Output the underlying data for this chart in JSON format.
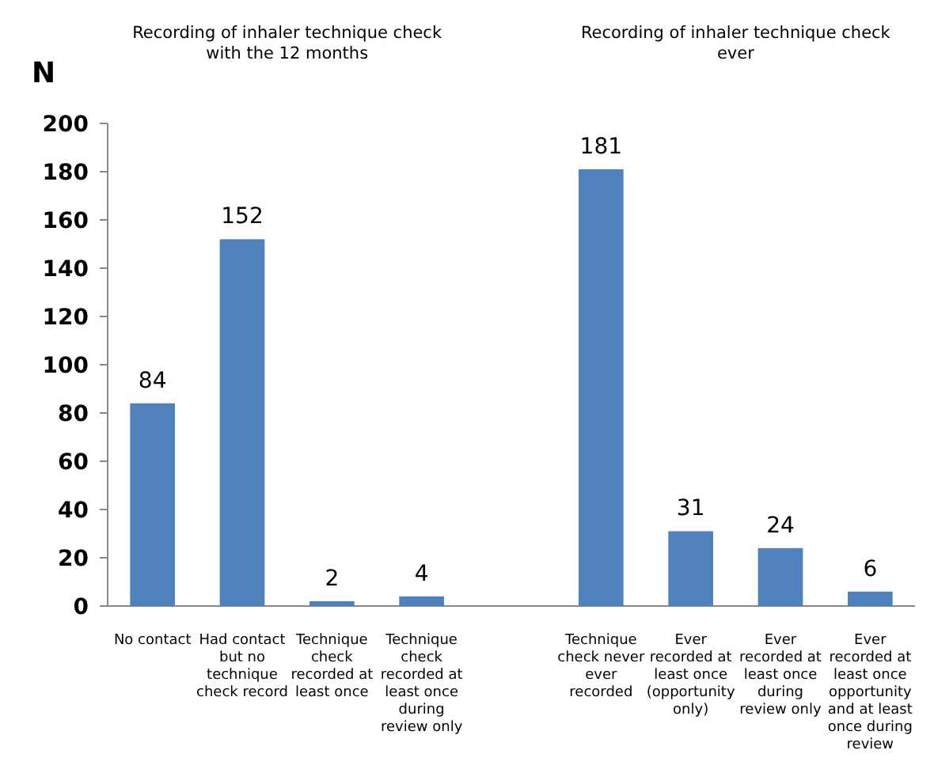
{
  "chart_data": {
    "type": "bar",
    "ylabel": "N",
    "annotations": [
      "Recording of inhaler technique check with the 12 months",
      "Recording of inhaler technique check ever"
    ],
    "categories": [
      "No contact",
      "Had contact but no technique check record",
      "Technique check recorded at least once",
      "Technique check recorded at least once during review only",
      null,
      "Technique check never ever recorded",
      "Ever recorded at least once (opportunity only)",
      "Ever recorded at least once during review only",
      "Ever recorded at least once opportunity and at least once during review"
    ],
    "values": [
      84,
      152,
      2,
      4,
      null,
      181,
      31,
      24,
      6
    ],
    "color": "#4f81bd",
    "ylim": [
      0,
      200
    ],
    "yticks": [
      0,
      20,
      40,
      60,
      80,
      100,
      120,
      140,
      160,
      180,
      200
    ],
    "data_labels": true,
    "grid": false
  }
}
